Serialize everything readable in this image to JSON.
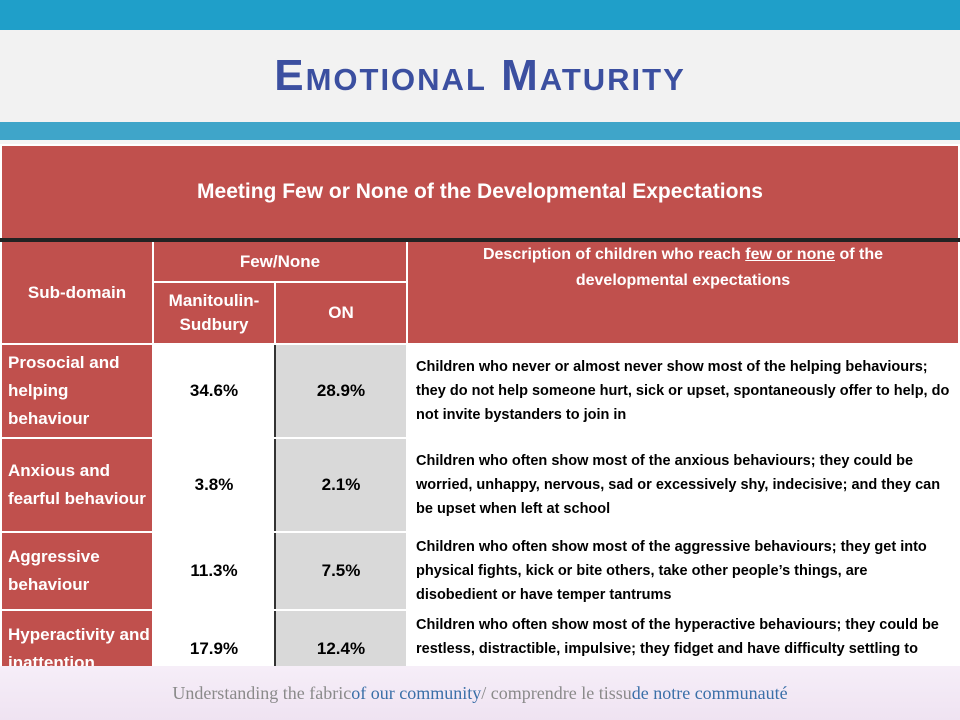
{
  "slide": {
    "title": "Emotional Maturity"
  },
  "table": {
    "banner": "Meeting Few or None of the Developmental Expectations",
    "col_subdomain": "Sub-domain",
    "col_fewnone": "Few/None",
    "col_region": "Manitoulin-Sudbury",
    "col_on": "ON",
    "col_desc_before": "Description of children who reach ",
    "col_desc_underlined": "few or none",
    "col_desc_after": " of the developmental expectations",
    "rows": [
      {
        "label": "Prosocial and helping behaviour",
        "region": "34.6%",
        "on": "28.9%",
        "description": "Children who never or almost never show most of the helping behaviours; they do not help someone hurt, sick or upset, spontaneously offer to help, do not invite bystanders to join in"
      },
      {
        "label": "Anxious and fearful behaviour",
        "region": "3.8%",
        "on": "2.1%",
        "description": "Children who often show most of the anxious behaviours; they could be worried, unhappy, nervous, sad or excessively shy, indecisive; and they can be upset when left at school"
      },
      {
        "label": "Aggressive behaviour",
        "region": "11.3%",
        "on": "7.5%",
        "description": "Children who often show most of the aggressive behaviours; they get into physical fights, kick or bite others, take other people’s things, are disobedient or have temper tantrums"
      },
      {
        "label": "Hyperactivity and inattention",
        "region": "17.9%",
        "on": "12.4%",
        "description": "Children who often show most of the hyperactive behaviours; they could be restless, distractible, impulsive; they fidget and have difficulty settling to activities"
      }
    ]
  },
  "footer": {
    "part1": "Understanding the fabric ",
    "part2": "of our community",
    "part3": " / comprendre le tissu ",
    "part4": "de notre communauté"
  },
  "colors": {
    "accent_blue": "#1f9fc9",
    "title_blue": "#3b4fa0",
    "header_red": "#c0504d",
    "value_grey": "#d9d9d9"
  }
}
